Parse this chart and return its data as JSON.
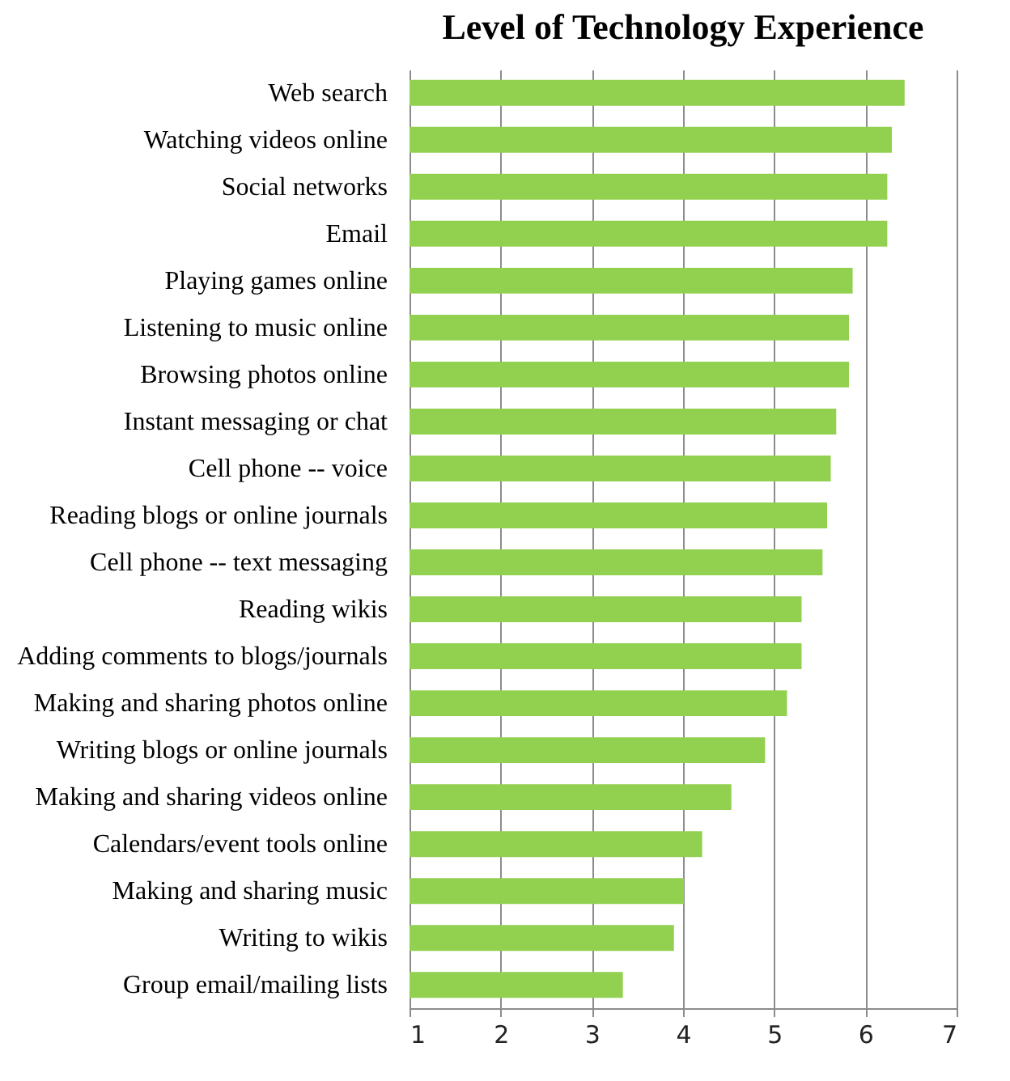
{
  "chart_data": {
    "type": "bar",
    "orientation": "horizontal",
    "title": "Level of Technology  Experience",
    "categories": [
      "Web search",
      "Watching videos online",
      "Social networks",
      "Email",
      "Playing games online",
      "Listening to music online",
      "Browsing photos online",
      "Instant messaging or chat",
      "Cell phone -- voice",
      "Reading blogs or online journals",
      "Cell phone -- text messaging",
      "Reading wikis",
      "Adding comments to blogs/journals",
      "Making and sharing photos online",
      "Writing blogs or online journals",
      "Making and sharing videos online",
      "Calendars/event tools online",
      "Making and sharing music",
      "Writing to wikis",
      "Group email/mailing lists"
    ],
    "values": [
      6.43,
      6.29,
      6.24,
      6.24,
      5.86,
      5.82,
      5.82,
      5.68,
      5.62,
      5.58,
      5.53,
      5.3,
      5.3,
      5.14,
      4.9,
      4.53,
      4.21,
      4.01,
      3.9,
      3.34
    ],
    "color": "#92d050",
    "xlim": [
      1,
      7
    ],
    "xticks": [
      1,
      2,
      3,
      4,
      5,
      6,
      7
    ],
    "grid": "x"
  }
}
